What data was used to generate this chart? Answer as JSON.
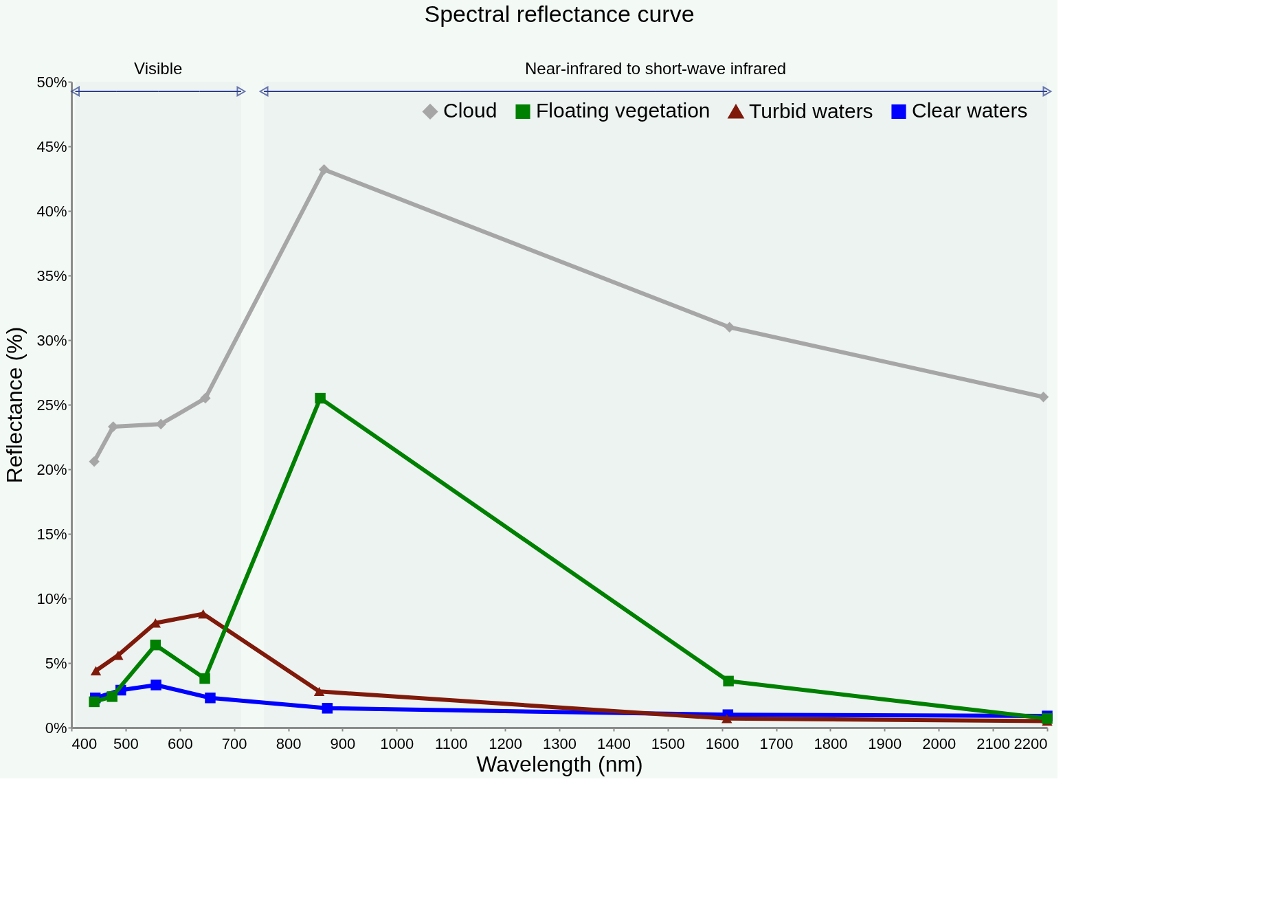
{
  "chart_data": {
    "type": "line",
    "title": "Spectral reflectance curve",
    "xlabel": "Wavelength (nm)",
    "ylabel": "Reflectance (%)",
    "xlim": [
      400,
      2200
    ],
    "xticks": [
      400,
      500,
      600,
      700,
      800,
      900,
      1000,
      1100,
      1200,
      1300,
      1400,
      1500,
      1600,
      1700,
      1800,
      1900,
      2000,
      2100,
      2200
    ],
    "ylim": [
      0,
      50
    ],
    "yticks": [
      {
        "value": 0,
        "label": "0%"
      },
      {
        "value": 5,
        "label": "5%"
      },
      {
        "value": 10,
        "label": "10%"
      },
      {
        "value": 15,
        "label": "15%"
      },
      {
        "value": 20,
        "label": "20%"
      },
      {
        "value": 25,
        "label": "25%"
      },
      {
        "value": 30,
        "label": "30%"
      },
      {
        "value": 35,
        "label": "35%"
      },
      {
        "value": 40,
        "label": "40%"
      },
      {
        "value": 45,
        "label": "45%"
      },
      {
        "value": 50,
        "label": "50%"
      }
    ],
    "grid": false,
    "legend": "top right",
    "bands": [
      {
        "axis": "x",
        "from": 407,
        "to": 713,
        "label": "Visible",
        "color": "#2e3f8f"
      },
      {
        "axis": "x",
        "from": 755,
        "to": 2200,
        "label": "Near-infrared to short-wave infrared",
        "color": "#2e3f8f"
      }
    ],
    "series": [
      {
        "name": "Cloud",
        "color": "#a6a6a6",
        "marker": "diamond",
        "x": [
          442,
          477,
          565,
          647,
          866,
          1614,
          2193
        ],
        "values": [
          20.6,
          23.3,
          23.5,
          25.5,
          43.2,
          31.0,
          25.6
        ]
      },
      {
        "name": "Floating vegetation",
        "color": "#008000",
        "marker": "square",
        "x": [
          442,
          475,
          555,
          646,
          859,
          1612,
          2200
        ],
        "values": [
          2.0,
          2.4,
          6.4,
          3.8,
          25.5,
          3.6,
          0.7
        ]
      },
      {
        "name": "Turbid waters",
        "color": "#7f1a0a",
        "marker": "triangle",
        "x": [
          445,
          486,
          555,
          643,
          857,
          1609,
          2200
        ],
        "values": [
          4.4,
          5.6,
          8.1,
          8.8,
          2.8,
          0.7,
          0.5
        ]
      },
      {
        "name": "Clear waters",
        "color": "#0000ff",
        "marker": "square",
        "x": [
          444,
          491,
          556,
          656,
          872,
          1611,
          2200
        ],
        "values": [
          2.3,
          2.9,
          3.3,
          2.3,
          1.5,
          1.0,
          0.9
        ]
      }
    ]
  }
}
